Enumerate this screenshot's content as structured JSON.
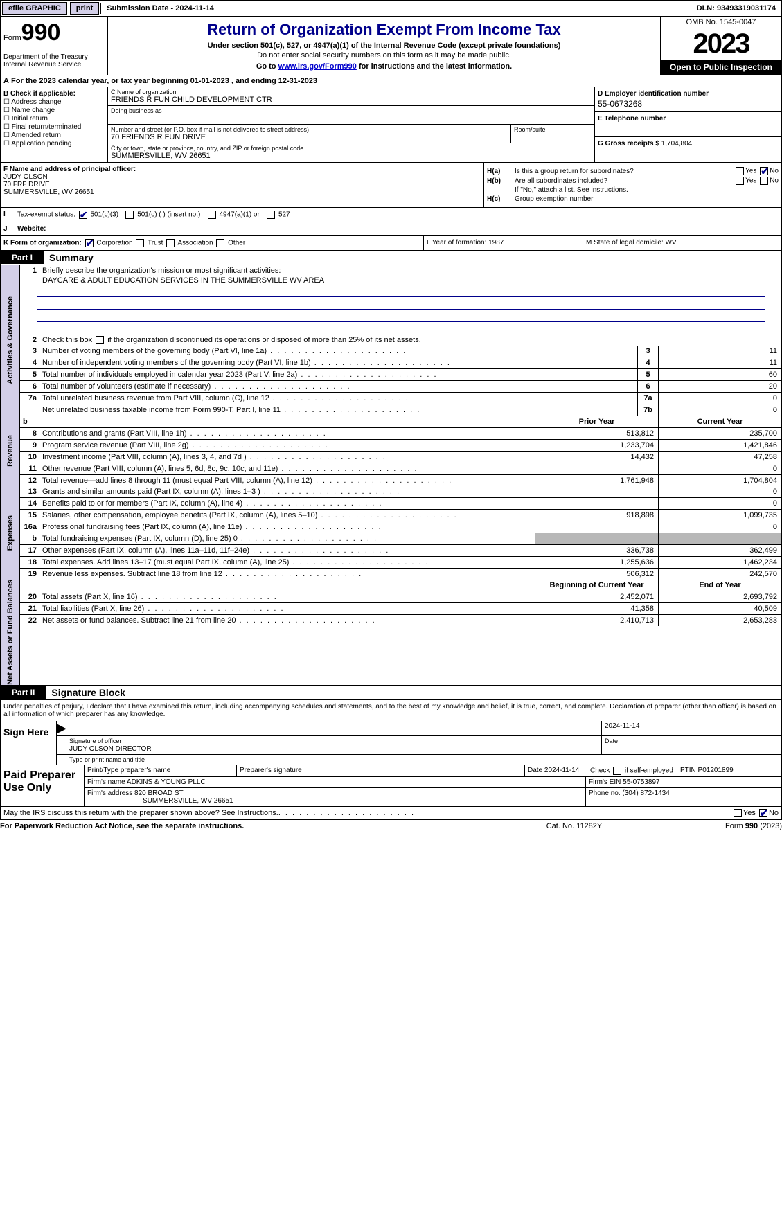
{
  "topbar": {
    "efile": "efile GRAPHIC",
    "print": "print",
    "submission": "Submission Date - 2024-11-14",
    "dln": "DLN: 93493319031174"
  },
  "header": {
    "form_label": "Form",
    "form_no": "990",
    "dept": "Department of the Treasury Internal Revenue Service",
    "title": "Return of Organization Exempt From Income Tax",
    "subtitle": "Under section 501(c), 527, or 4947(a)(1) of the Internal Revenue Code (except private foundations)",
    "ssn_note": "Do not enter social security numbers on this form as it may be made public.",
    "goto_pre": "Go to ",
    "goto_link": "www.irs.gov/Form990",
    "goto_post": " for instructions and the latest information.",
    "omb": "OMB No. 1545-0047",
    "year": "2023",
    "open": "Open to Public Inspection"
  },
  "a": "For the 2023 calendar year, or tax year beginning 01-01-2023   , and ending 12-31-2023",
  "b": {
    "label": "B Check if applicable:",
    "items": [
      "Address change",
      "Name change",
      "Initial return",
      "Final return/terminated",
      "Amended return",
      "Application pending"
    ]
  },
  "c": {
    "name_label": "C Name of organization",
    "name": "FRIENDS R FUN CHILD DEVELOPMENT CTR",
    "dba_label": "Doing business as",
    "street_label": "Number and street (or P.O. box if mail is not delivered to street address)",
    "room_label": "Room/suite",
    "street": "70 FRIENDS R FUN DRIVE",
    "city_label": "City or town, state or province, country, and ZIP or foreign postal code",
    "city": "SUMMERSVILLE, WV  26651"
  },
  "d": {
    "label": "D Employer identification number",
    "val": "55-0673268"
  },
  "e": {
    "label": "E Telephone number"
  },
  "g": {
    "label": "G Gross receipts $",
    "val": "1,704,804"
  },
  "f": {
    "label": "F  Name and address of principal officer:",
    "name": "JUDY OLSON",
    "street": "70 FRF DRIVE",
    "city": "SUMMERSVILLE, WV  26651"
  },
  "h": {
    "a": "Is this a group return for subordinates?",
    "b": "Are all subordinates included?",
    "note": "If \"No,\" attach a list. See instructions.",
    "c": "Group exemption number",
    "yes": "Yes",
    "no": "No"
  },
  "i": {
    "label": "Tax-exempt status:",
    "opts": [
      "501(c)(3)",
      "501(c) (  ) (insert no.)",
      "4947(a)(1) or",
      "527"
    ]
  },
  "j": {
    "label": "Website:"
  },
  "k": {
    "label": "K Form of organization:",
    "opts": [
      "Corporation",
      "Trust",
      "Association",
      "Other"
    ],
    "l": "L Year of formation: 1987",
    "m": "M State of legal domicile: WV"
  },
  "part1": {
    "label": "Part I",
    "title": "Summary"
  },
  "sections": {
    "gov": "Activities & Governance",
    "rev": "Revenue",
    "exp": "Expenses",
    "net": "Net Assets or Fund Balances"
  },
  "summary": {
    "l1": "Briefly describe the organization's mission or most significant activities:",
    "mission": "DAYCARE & ADULT EDUCATION SERVICES IN THE SUMMERSVILLE WV AREA",
    "l2": "Check this box      if the organization discontinued its operations or disposed of more than 25% of its net assets.",
    "rows_gov": [
      {
        "n": "3",
        "d": "Number of voting members of the governing body (Part VI, line 1a)",
        "box": "3",
        "v": "11"
      },
      {
        "n": "4",
        "d": "Number of independent voting members of the governing body (Part VI, line 1b)",
        "box": "4",
        "v": "11"
      },
      {
        "n": "5",
        "d": "Total number of individuals employed in calendar year 2023 (Part V, line 2a)",
        "box": "5",
        "v": "60"
      },
      {
        "n": "6",
        "d": "Total number of volunteers (estimate if necessary)",
        "box": "6",
        "v": "20"
      },
      {
        "n": "7a",
        "d": "Total unrelated business revenue from Part VIII, column (C), line 12",
        "box": "7a",
        "v": "0"
      },
      {
        "n": "",
        "d": "Net unrelated business taxable income from Form 990-T, Part I, line 11",
        "box": "7b",
        "v": "0"
      }
    ],
    "yh": {
      "p": "Prior Year",
      "c": "Current Year"
    },
    "rows_rev": [
      {
        "n": "8",
        "d": "Contributions and grants (Part VIII, line 1h)",
        "p": "513,812",
        "c": "235,700"
      },
      {
        "n": "9",
        "d": "Program service revenue (Part VIII, line 2g)",
        "p": "1,233,704",
        "c": "1,421,846"
      },
      {
        "n": "10",
        "d": "Investment income (Part VIII, column (A), lines 3, 4, and 7d )",
        "p": "14,432",
        "c": "47,258"
      },
      {
        "n": "11",
        "d": "Other revenue (Part VIII, column (A), lines 5, 6d, 8c, 9c, 10c, and 11e)",
        "p": "",
        "c": "0"
      },
      {
        "n": "12",
        "d": "Total revenue—add lines 8 through 11 (must equal Part VIII, column (A), line 12)",
        "p": "1,761,948",
        "c": "1,704,804"
      }
    ],
    "rows_exp": [
      {
        "n": "13",
        "d": "Grants and similar amounts paid (Part IX, column (A), lines 1–3 )",
        "p": "",
        "c": "0"
      },
      {
        "n": "14",
        "d": "Benefits paid to or for members (Part IX, column (A), line 4)",
        "p": "",
        "c": "0"
      },
      {
        "n": "15",
        "d": "Salaries, other compensation, employee benefits (Part IX, column (A), lines 5–10)",
        "p": "918,898",
        "c": "1,099,735"
      },
      {
        "n": "16a",
        "d": "Professional fundraising fees (Part IX, column (A), line 11e)",
        "p": "",
        "c": "0"
      },
      {
        "n": "b",
        "d": "Total fundraising expenses (Part IX, column (D), line 25) 0",
        "p": "grey",
        "c": "grey"
      },
      {
        "n": "17",
        "d": "Other expenses (Part IX, column (A), lines 11a–11d, 11f–24e)",
        "p": "336,738",
        "c": "362,499"
      },
      {
        "n": "18",
        "d": "Total expenses. Add lines 13–17 (must equal Part IX, column (A), line 25)",
        "p": "1,255,636",
        "c": "1,462,234"
      },
      {
        "n": "19",
        "d": "Revenue less expenses. Subtract line 18 from line 12",
        "p": "506,312",
        "c": "242,570"
      }
    ],
    "yh2": {
      "p": "Beginning of Current Year",
      "c": "End of Year"
    },
    "rows_net": [
      {
        "n": "20",
        "d": "Total assets (Part X, line 16)",
        "p": "2,452,071",
        "c": "2,693,792"
      },
      {
        "n": "21",
        "d": "Total liabilities (Part X, line 26)",
        "p": "41,358",
        "c": "40,509"
      },
      {
        "n": "22",
        "d": "Net assets or fund balances. Subtract line 21 from line 20",
        "p": "2,410,713",
        "c": "2,653,283"
      }
    ]
  },
  "part2": {
    "label": "Part II",
    "title": "Signature Block"
  },
  "sig": {
    "perjury": "Under penalties of perjury, I declare that I have examined this return, including accompanying schedules and statements, and to the best of my knowledge and belief, it is true, correct, and complete. Declaration of preparer (other than officer) is based on all information of which preparer has any knowledge.",
    "sign_here": "Sign Here",
    "sig_officer": "Signature of officer",
    "date": "Date",
    "sig_date": "2024-11-14",
    "name_title": "JUDY OLSON  DIRECTOR",
    "type_name": "Type or print name and title"
  },
  "prep": {
    "label": "Paid Preparer Use Only",
    "r1": {
      "c1": "Print/Type preparer's name",
      "c2": "Preparer's signature",
      "c3": "Date 2024-11-14",
      "c4": "Check       if self-employed",
      "c5": "PTIN P01201899"
    },
    "r2": {
      "c1": "Firm's name     ADKINS & YOUNG PLLC",
      "c2": "Firm's EIN  55-0753897"
    },
    "r3": {
      "c1": "Firm's address 820 BROAD ST",
      "c2": "Phone no. (304) 872-1434"
    },
    "r3b": "SUMMERSVILLE, WV  26651"
  },
  "discuss": {
    "q": "May the IRS discuss this return with the preparer shown above? See Instructions.",
    "yes": "Yes",
    "no": "No"
  },
  "footer": {
    "l": "For Paperwork Reduction Act Notice, see the separate instructions.",
    "m": "Cat. No. 11282Y",
    "r": "Form 990 (2023)"
  }
}
